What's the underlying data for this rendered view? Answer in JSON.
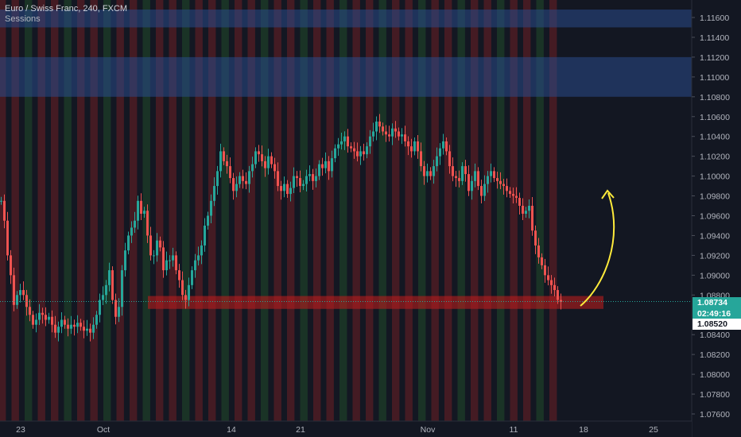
{
  "header": {
    "title": "Euro / Swiss Franc, 240, FXCM",
    "indicator": "Sessions"
  },
  "price_axis": {
    "labels": [
      "1.11600",
      "1.11400",
      "1.11200",
      "1.11000",
      "1.10800",
      "1.10600",
      "1.10400",
      "1.10200",
      "1.10000",
      "1.09800",
      "1.09600",
      "1.09400",
      "1.09200",
      "1.09000",
      "1.08800",
      "1.08400",
      "1.08200",
      "1.08000",
      "1.07800",
      "1.07600"
    ],
    "current_price": "1.08734",
    "countdown": "02:49:16",
    "marked_price": "1.08520"
  },
  "time_axis": {
    "labels": [
      "23",
      "Oct",
      "14",
      "21",
      "Nov",
      "11",
      "18",
      "25"
    ]
  },
  "colors": {
    "background": "#131722",
    "up_candle": "#26a69a",
    "down_candle": "#ef5350",
    "session_red": "#c62828",
    "session_green": "#2e7d32",
    "resistance_zone": "#2a4a8a",
    "support_zone": "#b71c1c",
    "arrow": "#ffeb3b",
    "price_badge": "#26a69a"
  },
  "icons": {
    "projection": "curved-up-arrow-icon"
  },
  "chart_data": {
    "type": "candlestick",
    "title": "Euro / Swiss Franc, 240, FXCM",
    "xlabel": "",
    "ylabel": "",
    "ylim": [
      1.075,
      1.1175
    ],
    "x_ticks": [
      "23",
      "Oct",
      "14",
      "21",
      "Nov",
      "11",
      "18",
      "25"
    ],
    "y_ticks": [
      1.116,
      1.114,
      1.112,
      1.11,
      1.108,
      1.106,
      1.104,
      1.102,
      1.1,
      1.098,
      1.096,
      1.094,
      1.092,
      1.09,
      1.088,
      1.084,
      1.082,
      1.08,
      1.078,
      1.076
    ],
    "last_price": 1.08734,
    "marked_level": 1.0852,
    "close_path": [
      [
        0,
        1.0975
      ],
      [
        4,
        1.0955
      ],
      [
        8,
        1.092
      ],
      [
        12,
        1.09
      ],
      [
        16,
        1.087
      ],
      [
        20,
        1.088
      ],
      [
        24,
        1.0885
      ],
      [
        28,
        1.088
      ],
      [
        32,
        1.0868
      ],
      [
        36,
        1.086
      ],
      [
        40,
        1.085
      ],
      [
        44,
        1.0855
      ],
      [
        48,
        1.0862
      ],
      [
        52,
        1.086
      ],
      [
        56,
        1.0855
      ],
      [
        60,
        1.0858
      ],
      [
        64,
        1.085
      ],
      [
        68,
        1.0842
      ],
      [
        72,
        1.0848
      ],
      [
        76,
        1.0855
      ],
      [
        80,
        1.085
      ],
      [
        84,
        1.0846
      ],
      [
        88,
        1.085
      ],
      [
        92,
        1.0848
      ],
      [
        96,
        1.0852
      ],
      [
        100,
        1.0848
      ],
      [
        104,
        1.0844
      ],
      [
        108,
        1.0846
      ],
      [
        112,
        1.0842
      ],
      [
        116,
        1.085
      ],
      [
        120,
        1.086
      ],
      [
        124,
        1.0875
      ],
      [
        128,
        1.088
      ],
      [
        132,
        1.089
      ],
      [
        136,
        1.0905
      ],
      [
        140,
        1.0875
      ],
      [
        144,
        1.0858
      ],
      [
        148,
        1.0868
      ],
      [
        152,
        1.0905
      ],
      [
        156,
        1.0925
      ],
      [
        160,
        1.094
      ],
      [
        164,
        1.0948
      ],
      [
        168,
        1.0955
      ],
      [
        172,
        1.0975
      ],
      [
        176,
        1.0962
      ],
      [
        180,
        1.0965
      ],
      [
        184,
        1.094
      ],
      [
        188,
        1.092
      ],
      [
        192,
        1.092
      ],
      [
        196,
        1.0935
      ],
      [
        200,
        1.0928
      ],
      [
        204,
        1.0905
      ],
      [
        208,
        1.0915
      ],
      [
        212,
        1.0915
      ],
      [
        216,
        1.092
      ],
      [
        220,
        1.0905
      ],
      [
        224,
        1.0895
      ],
      [
        228,
        1.088
      ],
      [
        232,
        1.0875
      ],
      [
        236,
        1.089
      ],
      [
        240,
        1.0905
      ],
      [
        244,
        1.0915
      ],
      [
        248,
        1.092
      ],
      [
        252,
        1.093
      ],
      [
        256,
        1.095
      ],
      [
        260,
        1.096
      ],
      [
        264,
        1.0975
      ],
      [
        268,
        1.099
      ],
      [
        272,
        1.1005
      ],
      [
        276,
        1.1025
      ],
      [
        280,
        1.1015
      ],
      [
        284,
        1.101
      ],
      [
        288,
        1.0998
      ],
      [
        292,
        1.0985
      ],
      [
        296,
        1.0992
      ],
      [
        300,
        1.1
      ],
      [
        304,
        1.0995
      ],
      [
        308,
        1.0992
      ],
      [
        312,
        1.1005
      ],
      [
        316,
        1.1012
      ],
      [
        320,
        1.1025
      ],
      [
        324,
        1.1022
      ],
      [
        328,
        1.1015
      ],
      [
        332,
        1.1008
      ],
      [
        336,
        1.102
      ],
      [
        340,
        1.1012
      ],
      [
        344,
        1.1005
      ],
      [
        348,
        1.099
      ],
      [
        352,
        1.0985
      ],
      [
        356,
        1.0992
      ],
      [
        360,
        1.0982
      ],
      [
        364,
        1.0988
      ],
      [
        368,
        1.1
      ],
      [
        372,
        1.0998
      ],
      [
        376,
        1.099
      ],
      [
        380,
        1.0992
      ],
      [
        384,
        1.1
      ],
      [
        388,
        1.1002
      ],
      [
        392,
        1.0995
      ],
      [
        396,
        1.1
      ],
      [
        400,
        1.1012
      ],
      [
        404,
        1.1008
      ],
      [
        408,
        1.1015
      ],
      [
        412,
        1.1005
      ],
      [
        416,
        1.1018
      ],
      [
        420,
        1.1028
      ],
      [
        424,
        1.1032
      ],
      [
        428,
        1.1035
      ],
      [
        432,
        1.104
      ],
      [
        436,
        1.103
      ],
      [
        440,
        1.1028
      ],
      [
        444,
        1.1025
      ],
      [
        448,
        1.102
      ],
      [
        452,
        1.1025
      ],
      [
        456,
        1.1022
      ],
      [
        460,
        1.103
      ],
      [
        464,
        1.104
      ],
      [
        468,
        1.1045
      ],
      [
        472,
        1.1055
      ],
      [
        476,
        1.105
      ],
      [
        480,
        1.1045
      ],
      [
        484,
        1.1042
      ],
      [
        488,
        1.104
      ],
      [
        492,
        1.1048
      ],
      [
        496,
        1.1045
      ],
      [
        500,
        1.104
      ],
      [
        504,
        1.1042
      ],
      [
        508,
        1.1035
      ],
      [
        512,
        1.103
      ],
      [
        516,
        1.1025
      ],
      [
        520,
        1.1035
      ],
      [
        524,
        1.1025
      ],
      [
        528,
        1.101
      ],
      [
        532,
        1.1
      ],
      [
        536,
        1.1005
      ],
      [
        540,
        1.1
      ],
      [
        544,
        1.101
      ],
      [
        548,
        1.102
      ],
      [
        552,
        1.1028
      ],
      [
        556,
        1.1035
      ],
      [
        560,
        1.1025
      ],
      [
        564,
        1.101
      ],
      [
        568,
        1.1
      ],
      [
        572,
        1.0998
      ],
      [
        576,
        1.0995
      ],
      [
        580,
        1.101
      ],
      [
        584,
        1.1002
      ],
      [
        588,
        1.0985
      ],
      [
        592,
        1.0995
      ],
      [
        596,
        1.1005
      ],
      [
        600,
        1.099
      ],
      [
        604,
        1.098
      ],
      [
        608,
        1.0992
      ],
      [
        612,
        1.1
      ],
      [
        616,
        1.1005
      ],
      [
        620,
        1.0998
      ],
      [
        624,
        1.0995
      ],
      [
        628,
        1.0992
      ],
      [
        632,
        1.099
      ],
      [
        636,
        1.0985
      ],
      [
        640,
        1.0982
      ],
      [
        644,
        1.098
      ],
      [
        648,
        1.0978
      ],
      [
        652,
        1.097
      ],
      [
        656,
        1.0962
      ],
      [
        660,
        1.0965
      ],
      [
        664,
        1.097
      ],
      [
        668,
        1.0945
      ],
      [
        672,
        1.093
      ],
      [
        676,
        1.0918
      ],
      [
        680,
        1.091
      ],
      [
        684,
        1.09
      ],
      [
        688,
        1.0895
      ],
      [
        692,
        1.089
      ],
      [
        696,
        1.0885
      ],
      [
        700,
        1.0875
      ],
      [
        704,
        1.0873
      ]
    ]
  }
}
